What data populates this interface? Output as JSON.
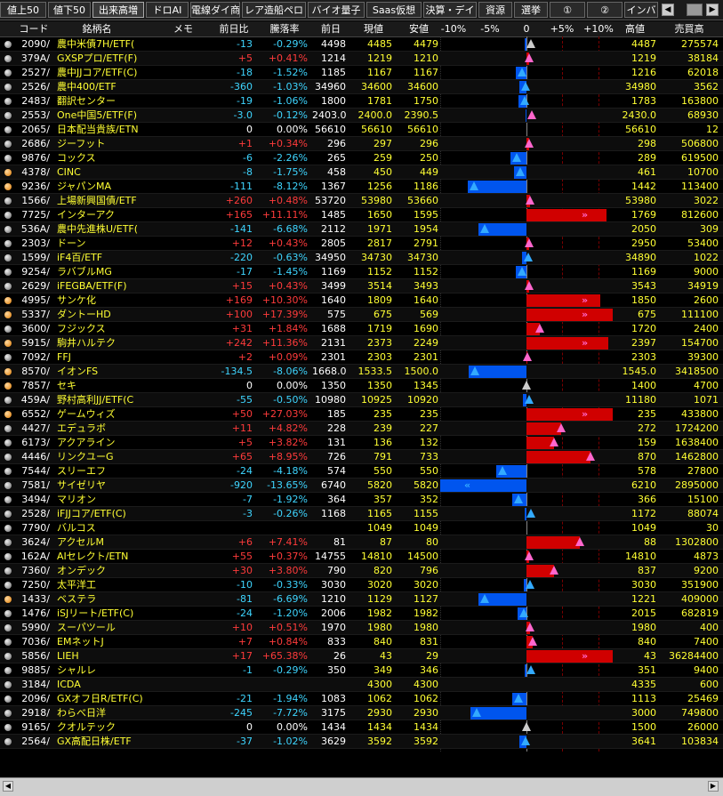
{
  "tabs": [
    "値上50",
    "値下50",
    "出来高増",
    "ドロAI",
    "電線ダイ商",
    "レア造船ペロ",
    "バイオ量子",
    "Saas仮想",
    "決算・デイ",
    "資源",
    "選挙",
    "①",
    "②",
    "インバ"
  ],
  "active_tab": 2,
  "headers": {
    "code": "コード",
    "name": "銘柄名",
    "memo": "メモ",
    "chg": "前日比",
    "pct": "騰落率",
    "prev": "前日",
    "cur": "現値",
    "low": "安値",
    "axis": [
      "-10%",
      "-5%",
      "0",
      "+5%",
      "+10%"
    ],
    "high": "高値",
    "vol": "売買高"
  },
  "rows": [
    {
      "code": "2090/",
      "name": "農中米債7H/ETF(",
      "chg": "-13",
      "pct": "-0.29%",
      "prev": "4498",
      "cur": "4485",
      "low": "4479",
      "high": "4487",
      "vol": "275574",
      "dot": "gray",
      "p": -0.29,
      "tri": "gray"
    },
    {
      "code": "379A/",
      "name": "GXSPプロ/ETF(F)",
      "chg": "+5",
      "pct": "+0.41%",
      "prev": "1214",
      "cur": "1219",
      "low": "1210",
      "high": "1219",
      "vol": "38184",
      "dot": "gray",
      "p": 0.41,
      "tri": "upp"
    },
    {
      "code": "2527/",
      "name": "農中JJコア/ETF(C)",
      "chg": "-18",
      "pct": "-1.52%",
      "prev": "1185",
      "cur": "1167",
      "low": "1167",
      "high": "1216",
      "vol": "62018",
      "dot": "gray",
      "p": -1.52,
      "tri": "up"
    },
    {
      "code": "2526/",
      "name": "農中400/ETF",
      "chg": "-360",
      "pct": "-1.03%",
      "prev": "34960",
      "cur": "34600",
      "low": "34600",
      "high": "34980",
      "vol": "3562",
      "dot": "gray",
      "p": -1.03,
      "tri": "up"
    },
    {
      "code": "2483/",
      "name": "翻訳センター",
      "chg": "-19",
      "pct": "-1.06%",
      "prev": "1800",
      "cur": "1781",
      "low": "1750",
      "high": "1783",
      "vol": "163800",
      "dot": "gray",
      "p": -1.06,
      "tri": "up"
    },
    {
      "code": "2553/",
      "name": "One中国5/ETF(F)",
      "chg": "-3.0",
      "pct": "-0.12%",
      "prev": "2403.0",
      "cur": "2400.0",
      "low": "2390.5",
      "high": "2430.0",
      "vol": "68930",
      "dot": "gray",
      "p": -0.12,
      "tri": "upp"
    },
    {
      "code": "2065/",
      "name": "日本配当貴族/ETN",
      "chg": "0",
      "pct": "0.00%",
      "prev": "56610",
      "cur": "56610",
      "low": "56610",
      "high": "56610",
      "vol": "12",
      "dot": "gray",
      "p": 0,
      "tri": "none"
    },
    {
      "code": "2686/",
      "name": "ジーフット",
      "chg": "+1",
      "pct": "+0.34%",
      "prev": "296",
      "cur": "297",
      "low": "296",
      "high": "298",
      "vol": "506800",
      "dot": "gray",
      "p": 0.34,
      "tri": "upp"
    },
    {
      "code": "9876/",
      "name": "コックス",
      "chg": "-6",
      "pct": "-2.26%",
      "prev": "265",
      "cur": "259",
      "low": "250",
      "high": "289",
      "vol": "619500",
      "dot": "gray",
      "p": -2.26,
      "tri": "up"
    },
    {
      "code": "4378/",
      "name": "CINC",
      "chg": "-8",
      "pct": "-1.75%",
      "prev": "458",
      "cur": "450",
      "low": "449",
      "high": "461",
      "vol": "10700",
      "dot": "orange",
      "p": -1.75,
      "tri": "up"
    },
    {
      "code": "9236/",
      "name": "ジャパンMA",
      "chg": "-111",
      "pct": "-8.12%",
      "prev": "1367",
      "cur": "1256",
      "low": "1186",
      "high": "1442",
      "vol": "113400",
      "dot": "orange",
      "p": -8.12,
      "tri": "up"
    },
    {
      "code": "1566/",
      "name": "上場新興国債/ETF",
      "chg": "+260",
      "pct": "+0.48%",
      "prev": "53720",
      "cur": "53980",
      "low": "53660",
      "high": "53980",
      "vol": "3022",
      "dot": "gray",
      "p": 0.48,
      "tri": "upp"
    },
    {
      "code": "7725/",
      "name": "インターアク",
      "chg": "+165",
      "pct": "+11.11%",
      "prev": "1485",
      "cur": "1650",
      "low": "1595",
      "high": "1769",
      "vol": "812600",
      "dot": "gray",
      "p": 11.11,
      "tri": "arrow"
    },
    {
      "code": "536A/",
      "name": "農中先進株U/ETF(",
      "chg": "-141",
      "pct": "-6.68%",
      "prev": "2112",
      "cur": "1971",
      "low": "1954",
      "high": "2050",
      "vol": "309",
      "dot": "gray",
      "p": -6.68,
      "tri": "up"
    },
    {
      "code": "2303/",
      "name": "ドーン",
      "chg": "+12",
      "pct": "+0.43%",
      "prev": "2805",
      "cur": "2817",
      "low": "2791",
      "high": "2950",
      "vol": "53400",
      "dot": "gray",
      "p": 0.43,
      "tri": "upp"
    },
    {
      "code": "1599/",
      "name": "iF4百/ETF",
      "chg": "-220",
      "pct": "-0.63%",
      "prev": "34950",
      "cur": "34730",
      "low": "34730",
      "high": "34890",
      "vol": "1022",
      "dot": "gray",
      "p": -0.63,
      "tri": "up"
    },
    {
      "code": "9254/",
      "name": "ラバブルMG",
      "chg": "-17",
      "pct": "-1.45%",
      "prev": "1169",
      "cur": "1152",
      "low": "1152",
      "high": "1169",
      "vol": "9000",
      "dot": "gray",
      "p": -1.45,
      "tri": "up"
    },
    {
      "code": "2629/",
      "name": "iFEGBA/ETF(F)",
      "chg": "+15",
      "pct": "+0.43%",
      "prev": "3499",
      "cur": "3514",
      "low": "3493",
      "high": "3543",
      "vol": "34919",
      "dot": "gray",
      "p": 0.43,
      "tri": "upp"
    },
    {
      "code": "4995/",
      "name": "サンケ化",
      "chg": "+169",
      "pct": "+10.30%",
      "prev": "1640",
      "cur": "1809",
      "low": "1640",
      "high": "1850",
      "vol": "2600",
      "dot": "orange",
      "p": 10.3,
      "tri": "arrow"
    },
    {
      "code": "5337/",
      "name": "ダントーHD",
      "chg": "+100",
      "pct": "+17.39%",
      "prev": "575",
      "cur": "675",
      "low": "569",
      "high": "675",
      "vol": "111100",
      "dot": "orange",
      "p": 17.39,
      "tri": "arrow"
    },
    {
      "code": "3600/",
      "name": "フジックス",
      "chg": "+31",
      "pct": "+1.84%",
      "prev": "1688",
      "cur": "1719",
      "low": "1690",
      "high": "1720",
      "vol": "2400",
      "dot": "gray",
      "p": 1.84,
      "tri": "upp"
    },
    {
      "code": "5915/",
      "name": "駒井ハルテク",
      "chg": "+242",
      "pct": "+11.36%",
      "prev": "2131",
      "cur": "2373",
      "low": "2249",
      "high": "2397",
      "vol": "154700",
      "dot": "orange",
      "p": 11.36,
      "tri": "arrow"
    },
    {
      "code": "7092/",
      "name": "FFJ",
      "chg": "+2",
      "pct": "+0.09%",
      "prev": "2301",
      "cur": "2303",
      "low": "2301",
      "high": "2303",
      "vol": "39300",
      "dot": "gray",
      "p": 0.09,
      "tri": "upp"
    },
    {
      "code": "8570/",
      "name": "イオンFS",
      "chg": "-134.5",
      "pct": "-8.06%",
      "prev": "1668.0",
      "cur": "1533.5",
      "low": "1500.0",
      "high": "1545.0",
      "vol": "3418500",
      "dot": "orange",
      "p": -8.06,
      "tri": "up"
    },
    {
      "code": "7857/",
      "name": "セキ",
      "chg": "0",
      "pct": "0.00%",
      "prev": "1350",
      "cur": "1350",
      "low": "1345",
      "high": "1400",
      "vol": "4700",
      "dot": "orange",
      "p": 0,
      "tri": "gray"
    },
    {
      "code": "459A/",
      "name": "野村高利JJ/ETF(C",
      "chg": "-55",
      "pct": "-0.50%",
      "prev": "10980",
      "cur": "10925",
      "low": "10920",
      "high": "11180",
      "vol": "1071",
      "dot": "gray",
      "p": -0.5,
      "tri": "up"
    },
    {
      "code": "6552/",
      "name": "ゲームウィズ",
      "chg": "+50",
      "pct": "+27.03%",
      "prev": "185",
      "cur": "235",
      "low": "235",
      "high": "235",
      "vol": "433800",
      "dot": "orange",
      "p": 27.03,
      "tri": "arrow"
    },
    {
      "code": "4427/",
      "name": "エデュラボ",
      "chg": "+11",
      "pct": "+4.82%",
      "prev": "228",
      "cur": "239",
      "low": "227",
      "high": "272",
      "vol": "1724200",
      "dot": "gray",
      "p": 4.82,
      "tri": "upp"
    },
    {
      "code": "6173/",
      "name": "アクアライン",
      "chg": "+5",
      "pct": "+3.82%",
      "prev": "131",
      "cur": "136",
      "low": "132",
      "high": "159",
      "vol": "1638400",
      "dot": "gray",
      "p": 3.82,
      "tri": "upp"
    },
    {
      "code": "4446/",
      "name": "リンクユーG",
      "chg": "+65",
      "pct": "+8.95%",
      "prev": "726",
      "cur": "791",
      "low": "733",
      "high": "870",
      "vol": "1462800",
      "dot": "gray",
      "p": 8.95,
      "tri": "upp"
    },
    {
      "code": "7544/",
      "name": "スリーエフ",
      "chg": "-24",
      "pct": "-4.18%",
      "prev": "574",
      "cur": "550",
      "low": "550",
      "high": "578",
      "vol": "27800",
      "dot": "gray",
      "p": -4.18,
      "tri": "up"
    },
    {
      "code": "7581/",
      "name": "サイゼリヤ",
      "chg": "-920",
      "pct": "-13.65%",
      "prev": "6740",
      "cur": "5820",
      "low": "5820",
      "high": "6210",
      "vol": "2895000",
      "dot": "gray",
      "p": -13.65,
      "tri": "arrowdn"
    },
    {
      "code": "3494/",
      "name": "マリオン",
      "chg": "-7",
      "pct": "-1.92%",
      "prev": "364",
      "cur": "357",
      "low": "352",
      "high": "366",
      "vol": "15100",
      "dot": "gray",
      "p": -1.92,
      "tri": "up"
    },
    {
      "code": "2528/",
      "name": "iFJJコア/ETF(C)",
      "chg": "-3",
      "pct": "-0.26%",
      "prev": "1168",
      "cur": "1165",
      "low": "1155",
      "high": "1172",
      "vol": "88074",
      "dot": "gray",
      "p": -0.26,
      "tri": "up"
    },
    {
      "code": "7790/",
      "name": "バルコス",
      "chg": "",
      "pct": "",
      "prev": "",
      "cur": "1049",
      "low": "1049",
      "high": "1049",
      "vol": "30",
      "dot": "gray",
      "p": 0,
      "tri": "none"
    },
    {
      "code": "3624/",
      "name": "アクセルM",
      "chg": "+6",
      "pct": "+7.41%",
      "prev": "81",
      "cur": "87",
      "low": "80",
      "high": "88",
      "vol": "1302800",
      "dot": "gray",
      "p": 7.41,
      "tri": "upp"
    },
    {
      "code": "162A/",
      "name": "AIセレクト/ETN",
      "chg": "+55",
      "pct": "+0.37%",
      "prev": "14755",
      "cur": "14810",
      "low": "14500",
      "high": "14810",
      "vol": "4873",
      "dot": "gray",
      "p": 0.37,
      "tri": "upp"
    },
    {
      "code": "7360/",
      "name": "オンデック",
      "chg": "+30",
      "pct": "+3.80%",
      "prev": "790",
      "cur": "820",
      "low": "796",
      "high": "837",
      "vol": "9200",
      "dot": "gray",
      "p": 3.8,
      "tri": "upp"
    },
    {
      "code": "7250/",
      "name": "太平洋工",
      "chg": "-10",
      "pct": "-0.33%",
      "prev": "3030",
      "cur": "3020",
      "low": "3020",
      "high": "3030",
      "vol": "351900",
      "dot": "gray",
      "p": -0.33,
      "tri": "up"
    },
    {
      "code": "1433/",
      "name": "ベステラ",
      "chg": "-81",
      "pct": "-6.69%",
      "prev": "1210",
      "cur": "1129",
      "low": "1127",
      "high": "1221",
      "vol": "409000",
      "dot": "orange",
      "p": -6.69,
      "tri": "up"
    },
    {
      "code": "1476/",
      "name": "iSJリート/ETF(C)",
      "chg": "-24",
      "pct": "-1.20%",
      "prev": "2006",
      "cur": "1982",
      "low": "1982",
      "high": "2015",
      "vol": "682819",
      "dot": "gray",
      "p": -1.2,
      "tri": "up"
    },
    {
      "code": "5990/",
      "name": "スーパツール",
      "chg": "+10",
      "pct": "+0.51%",
      "prev": "1970",
      "cur": "1980",
      "low": "1980",
      "high": "1980",
      "vol": "400",
      "dot": "gray",
      "p": 0.51,
      "tri": "upp"
    },
    {
      "code": "7036/",
      "name": "EMネットJ",
      "chg": "+7",
      "pct": "+0.84%",
      "prev": "833",
      "cur": "840",
      "low": "831",
      "high": "840",
      "vol": "7400",
      "dot": "gray",
      "p": 0.84,
      "tri": "upp"
    },
    {
      "code": "5856/",
      "name": "LIEH",
      "chg": "+17",
      "pct": "+65.38%",
      "prev": "26",
      "cur": "43",
      "low": "29",
      "high": "43",
      "vol": "36284400",
      "dot": "gray",
      "p": 65.38,
      "tri": "arrow"
    },
    {
      "code": "9885/",
      "name": "シャルレ",
      "chg": "-1",
      "pct": "-0.29%",
      "prev": "350",
      "cur": "349",
      "low": "346",
      "high": "351",
      "vol": "9400",
      "dot": "gray",
      "p": -0.29,
      "tri": "up"
    },
    {
      "code": "3184/",
      "name": "ICDA",
      "chg": "",
      "pct": "",
      "prev": "",
      "cur": "4300",
      "low": "4300",
      "high": "4335",
      "vol": "600",
      "dot": "gray",
      "p": 0,
      "tri": "none"
    },
    {
      "code": "2096/",
      "name": "GXオフ日R/ETF(C)",
      "chg": "-21",
      "pct": "-1.94%",
      "prev": "1083",
      "cur": "1062",
      "low": "1062",
      "high": "1113",
      "vol": "25469",
      "dot": "gray",
      "p": -1.94,
      "tri": "up"
    },
    {
      "code": "2918/",
      "name": "わらべ日洋",
      "chg": "-245",
      "pct": "-7.72%",
      "prev": "3175",
      "cur": "2930",
      "low": "2930",
      "high": "3000",
      "vol": "749800",
      "dot": "gray",
      "p": -7.72,
      "tri": "up"
    },
    {
      "code": "9165/",
      "name": "クオルテック",
      "chg": "0",
      "pct": "0.00%",
      "prev": "1434",
      "cur": "1434",
      "low": "1434",
      "high": "1500",
      "vol": "26000",
      "dot": "gray",
      "p": 0,
      "tri": "gray"
    },
    {
      "code": "2564/",
      "name": "GX高配日株/ETF",
      "chg": "-37",
      "pct": "-1.02%",
      "prev": "3629",
      "cur": "3592",
      "low": "3592",
      "high": "3641",
      "vol": "103834",
      "dot": "gray",
      "p": -1.02,
      "tri": "up"
    }
  ]
}
